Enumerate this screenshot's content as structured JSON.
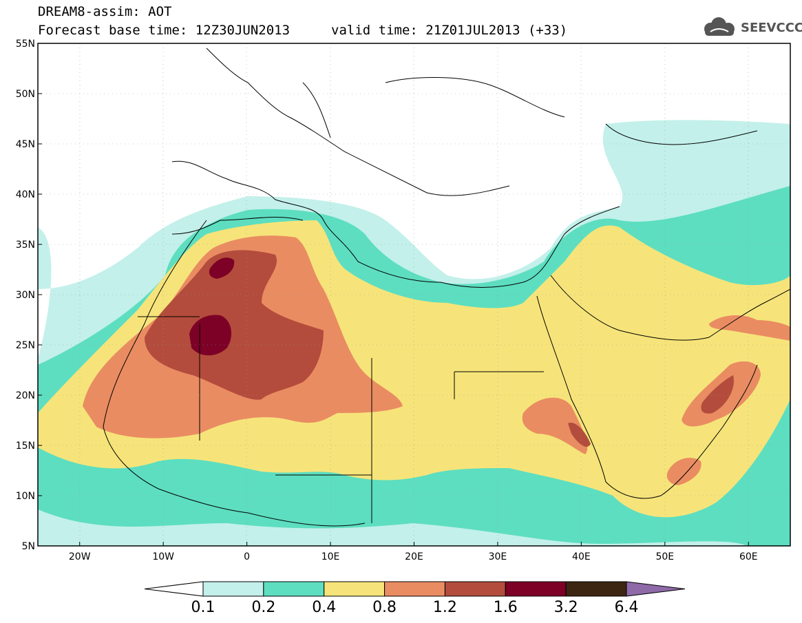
{
  "header": {
    "title_line1": "DREAM8-assim: AOT",
    "title_line2": "Forecast base time: 12Z30JUN2013",
    "valid_time": "valid time: 21Z01JUL2013 (+33)",
    "logo_text": "SEEVCCC"
  },
  "map": {
    "lat_labels": [
      "55N",
      "50N",
      "45N",
      "40N",
      "35N",
      "30N",
      "25N",
      "20N",
      "15N",
      "10N",
      "5N"
    ],
    "lon_labels": [
      "20W",
      "10W",
      "0",
      "10E",
      "20E",
      "30E",
      "40E",
      "50E",
      "60E"
    ],
    "extent": {
      "lon_min": -25,
      "lon_max": 65,
      "lat_min": 5,
      "lat_max": 55
    }
  },
  "colorbar": {
    "colors": [
      "#ffffff",
      "#c3f0ea",
      "#5ddec0",
      "#f6e47a",
      "#ea8c62",
      "#b34c3c",
      "#7d0027",
      "#3c2612",
      "#8e6aa8"
    ],
    "labels": [
      "0.1",
      "0.2",
      "0.4",
      "0.8",
      "1.2",
      "1.6",
      "3.2",
      "6.4"
    ]
  }
}
